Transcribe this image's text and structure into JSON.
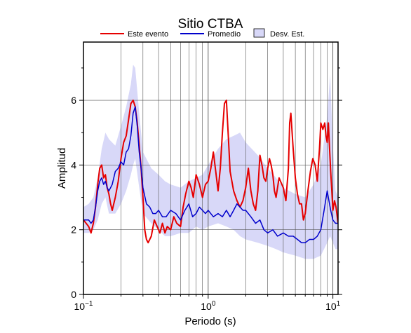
{
  "chart_data": {
    "type": "line",
    "title": "Sitio CTBA",
    "xlabel": "Periodo (s)",
    "ylabel": "Amplitud",
    "xscale": "log",
    "xlim": [
      0.1,
      11
    ],
    "ylim": [
      0,
      7.8
    ],
    "x_ticks": [
      {
        "value": 0.1,
        "base": "10",
        "exp": "−1"
      },
      {
        "value": 1,
        "base": "10",
        "exp": "0"
      },
      {
        "value": 10,
        "base": "10",
        "exp": "1"
      }
    ],
    "y_ticks": [
      0,
      2,
      4,
      6
    ],
    "grid": true,
    "legend": {
      "position": "top",
      "items": [
        {
          "label": "Este evento",
          "kind": "line",
          "color": "#e60000"
        },
        {
          "label": "Promedio",
          "kind": "line",
          "color": "#0000cc"
        },
        {
          "label": "Desv. Est.",
          "kind": "box",
          "color": "#d8d8f8"
        }
      ]
    },
    "band": {
      "name": "Desv. Est.",
      "color": "#d8d8f8",
      "x": [
        0.1,
        0.11,
        0.12,
        0.13,
        0.14,
        0.15,
        0.16,
        0.18,
        0.2,
        0.22,
        0.24,
        0.25,
        0.26,
        0.28,
        0.3,
        0.35,
        0.4,
        0.45,
        0.5,
        0.6,
        0.7,
        0.8,
        0.9,
        1.0,
        1.2,
        1.4,
        1.6,
        1.8,
        2.0,
        2.5,
        3.0,
        3.5,
        4.0,
        5.0,
        6.0,
        7.0,
        8.0,
        9.0,
        9.5,
        10.0,
        10.5,
        11.0
      ],
      "upper": [
        2.7,
        2.8,
        3.0,
        3.6,
        4.5,
        5.0,
        4.8,
        4.6,
        5.2,
        5.8,
        6.5,
        7.1,
        7.0,
        5.6,
        4.4,
        3.9,
        3.7,
        3.5,
        3.4,
        3.3,
        3.5,
        3.6,
        3.7,
        4.0,
        4.5,
        4.8,
        4.9,
        5.0,
        4.7,
        4.3,
        3.9,
        3.6,
        3.3,
        3.1,
        3.0,
        3.4,
        4.0,
        5.5,
        6.8,
        4.6,
        3.2,
        3.0
      ],
      "lower": [
        1.9,
        1.9,
        2.0,
        2.3,
        2.8,
        3.0,
        2.5,
        2.5,
        2.8,
        3.2,
        3.7,
        4.0,
        4.2,
        3.3,
        2.5,
        2.2,
        2.0,
        1.8,
        1.8,
        1.9,
        1.9,
        2.1,
        2.0,
        2.1,
        2.2,
        2.1,
        2.0,
        1.8,
        1.7,
        1.6,
        1.5,
        1.4,
        1.3,
        1.2,
        1.1,
        1.1,
        1.2,
        1.6,
        1.8,
        1.6,
        1.4,
        1.4
      ]
    },
    "series": [
      {
        "name": "Este evento",
        "color": "#e60000",
        "x": [
          0.1,
          0.105,
          0.11,
          0.115,
          0.12,
          0.125,
          0.13,
          0.135,
          0.14,
          0.145,
          0.15,
          0.155,
          0.16,
          0.165,
          0.17,
          0.18,
          0.19,
          0.2,
          0.21,
          0.22,
          0.23,
          0.24,
          0.25,
          0.26,
          0.27,
          0.28,
          0.29,
          0.3,
          0.31,
          0.32,
          0.33,
          0.35,
          0.37,
          0.39,
          0.41,
          0.43,
          0.45,
          0.47,
          0.5,
          0.53,
          0.56,
          0.6,
          0.63,
          0.66,
          0.7,
          0.73,
          0.76,
          0.8,
          0.85,
          0.9,
          0.95,
          1.0,
          1.05,
          1.1,
          1.15,
          1.2,
          1.25,
          1.3,
          1.35,
          1.4,
          1.45,
          1.5,
          1.6,
          1.7,
          1.8,
          1.9,
          2.0,
          2.1,
          2.2,
          2.3,
          2.4,
          2.5,
          2.6,
          2.7,
          2.8,
          2.9,
          3.0,
          3.1,
          3.2,
          3.3,
          3.4,
          3.5,
          3.6,
          3.7,
          3.8,
          3.9,
          4.0,
          4.2,
          4.4,
          4.5,
          4.6,
          4.8,
          5.0,
          5.2,
          5.4,
          5.6,
          5.8,
          6.0,
          6.3,
          6.6,
          6.9,
          7.2,
          7.5,
          7.8,
          8.0,
          8.3,
          8.6,
          8.8,
          9.0,
          9.2,
          9.4,
          9.6,
          9.8,
          10.0,
          10.3,
          10.6,
          11.0
        ],
        "y": [
          2.3,
          2.2,
          2.1,
          1.9,
          2.2,
          2.7,
          3.4,
          3.9,
          4.0,
          3.6,
          3.7,
          3.3,
          3.1,
          2.8,
          2.6,
          3.0,
          3.5,
          4.2,
          4.7,
          4.9,
          5.4,
          5.9,
          6.0,
          5.8,
          5.3,
          4.6,
          3.9,
          3.0,
          2.0,
          1.7,
          1.6,
          1.8,
          2.3,
          2.1,
          1.9,
          2.2,
          1.9,
          2.1,
          2.0,
          2.4,
          2.2,
          2.1,
          2.7,
          3.1,
          3.5,
          3.3,
          3.0,
          3.7,
          3.4,
          3.0,
          3.4,
          3.5,
          3.9,
          4.4,
          3.8,
          3.2,
          3.9,
          5.0,
          5.9,
          6.0,
          4.9,
          3.8,
          3.2,
          2.9,
          2.7,
          2.9,
          3.3,
          3.9,
          3.2,
          2.8,
          2.6,
          3.2,
          4.3,
          4.0,
          3.6,
          3.5,
          3.9,
          4.2,
          4.0,
          3.7,
          3.2,
          3.0,
          3.3,
          3.6,
          3.5,
          3.4,
          3.3,
          2.9,
          3.9,
          5.3,
          5.6,
          4.5,
          3.6,
          3.1,
          2.8,
          2.8,
          2.3,
          2.5,
          3.2,
          3.8,
          4.2,
          4.0,
          3.5,
          4.5,
          5.3,
          5.1,
          5.3,
          4.9,
          4.7,
          5.3,
          4.5,
          3.8,
          3.2,
          2.6,
          2.9,
          2.7,
          2.2
        ]
      },
      {
        "name": "Promedio",
        "color": "#0000cc",
        "x": [
          0.1,
          0.105,
          0.11,
          0.115,
          0.12,
          0.125,
          0.13,
          0.135,
          0.14,
          0.145,
          0.15,
          0.155,
          0.16,
          0.17,
          0.18,
          0.19,
          0.2,
          0.21,
          0.22,
          0.23,
          0.24,
          0.25,
          0.26,
          0.27,
          0.28,
          0.29,
          0.3,
          0.32,
          0.34,
          0.36,
          0.38,
          0.4,
          0.43,
          0.46,
          0.5,
          0.55,
          0.6,
          0.65,
          0.7,
          0.75,
          0.8,
          0.85,
          0.9,
          0.95,
          1.0,
          1.1,
          1.2,
          1.3,
          1.4,
          1.5,
          1.6,
          1.7,
          1.8,
          1.9,
          2.0,
          2.2,
          2.4,
          2.6,
          2.8,
          3.0,
          3.3,
          3.6,
          4.0,
          4.4,
          4.8,
          5.2,
          5.6,
          6.0,
          6.5,
          7.0,
          7.5,
          8.0,
          8.5,
          9.0,
          9.3,
          9.6,
          10.0,
          10.5,
          11.0
        ],
        "y": [
          2.3,
          2.3,
          2.3,
          2.2,
          2.3,
          2.7,
          3.2,
          3.5,
          3.6,
          3.4,
          3.5,
          3.3,
          3.2,
          3.4,
          3.8,
          3.9,
          4.1,
          4.0,
          4.4,
          4.5,
          4.9,
          5.6,
          5.8,
          5.2,
          4.4,
          3.9,
          3.3,
          2.8,
          2.7,
          2.5,
          2.5,
          2.6,
          2.4,
          2.4,
          2.6,
          2.5,
          2.3,
          2.6,
          2.8,
          2.4,
          2.5,
          2.7,
          2.6,
          2.5,
          2.6,
          2.4,
          2.5,
          2.4,
          2.6,
          2.4,
          2.6,
          2.8,
          2.7,
          2.6,
          2.6,
          2.4,
          2.2,
          2.3,
          2.0,
          1.9,
          2.0,
          1.8,
          1.9,
          1.8,
          1.8,
          1.7,
          1.6,
          1.6,
          1.7,
          1.7,
          1.8,
          2.0,
          2.6,
          3.2,
          2.9,
          2.6,
          2.3,
          2.2,
          2.2
        ]
      }
    ]
  }
}
